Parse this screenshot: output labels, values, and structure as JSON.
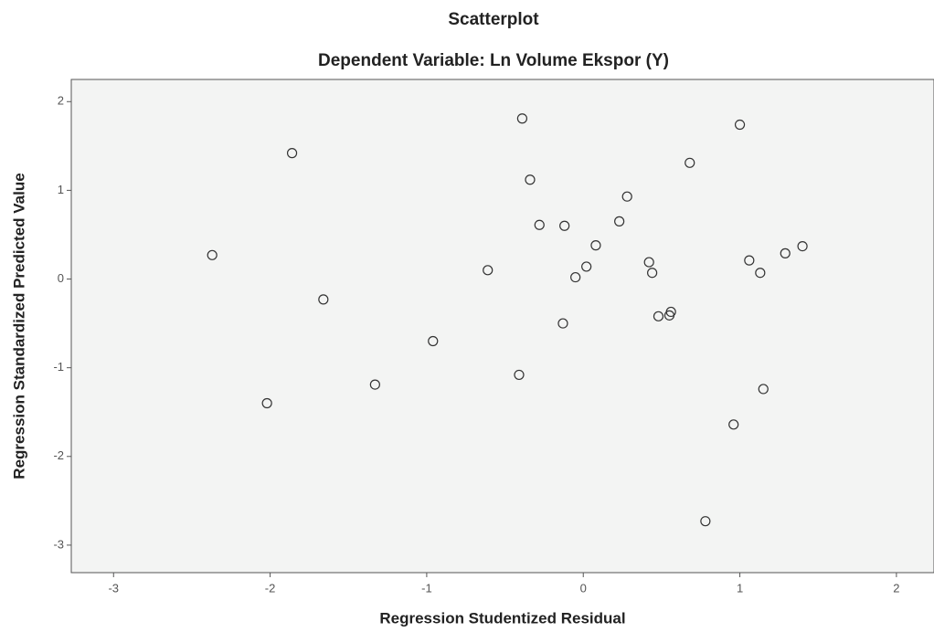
{
  "chart_data": {
    "type": "scatter",
    "title": "Scatterplot",
    "subtitle": "Dependent Variable: Ln Volume Ekspor (Y)",
    "x_label": "Regression Studentized Residual",
    "y_label": "Regression Standardized Predicted Value",
    "x": [
      -0.39,
      1.0,
      -1.86,
      0.68,
      -0.34,
      0.28,
      -0.28,
      -0.12,
      0.23,
      0.08,
      -2.37,
      1.29,
      1.4,
      1.06,
      1.13,
      0.42,
      0.44,
      -0.61,
      0.02,
      -0.05,
      -1.66,
      0.48,
      0.56,
      0.55,
      -0.13,
      -0.96,
      -0.41,
      -1.33,
      1.15,
      -2.02,
      0.96,
      0.78
    ],
    "values": [
      1.81,
      1.74,
      1.42,
      1.31,
      1.12,
      0.93,
      0.61,
      0.6,
      0.65,
      0.38,
      0.27,
      0.29,
      0.37,
      0.21,
      0.07,
      0.19,
      0.07,
      0.1,
      0.14,
      0.02,
      -0.23,
      -0.42,
      -0.37,
      -0.41,
      -0.5,
      -0.7,
      -1.08,
      -1.19,
      -1.24,
      -1.4,
      -1.64,
      -2.73
    ],
    "color": "#333333",
    "xlim": [
      -3.27,
      2.24
    ],
    "ylim": [
      -3.31,
      2.25
    ],
    "xticks": [
      -3,
      -2,
      -1,
      0,
      1,
      2
    ],
    "yticks": [
      -3,
      -2,
      -1,
      0,
      1,
      2
    ]
  }
}
